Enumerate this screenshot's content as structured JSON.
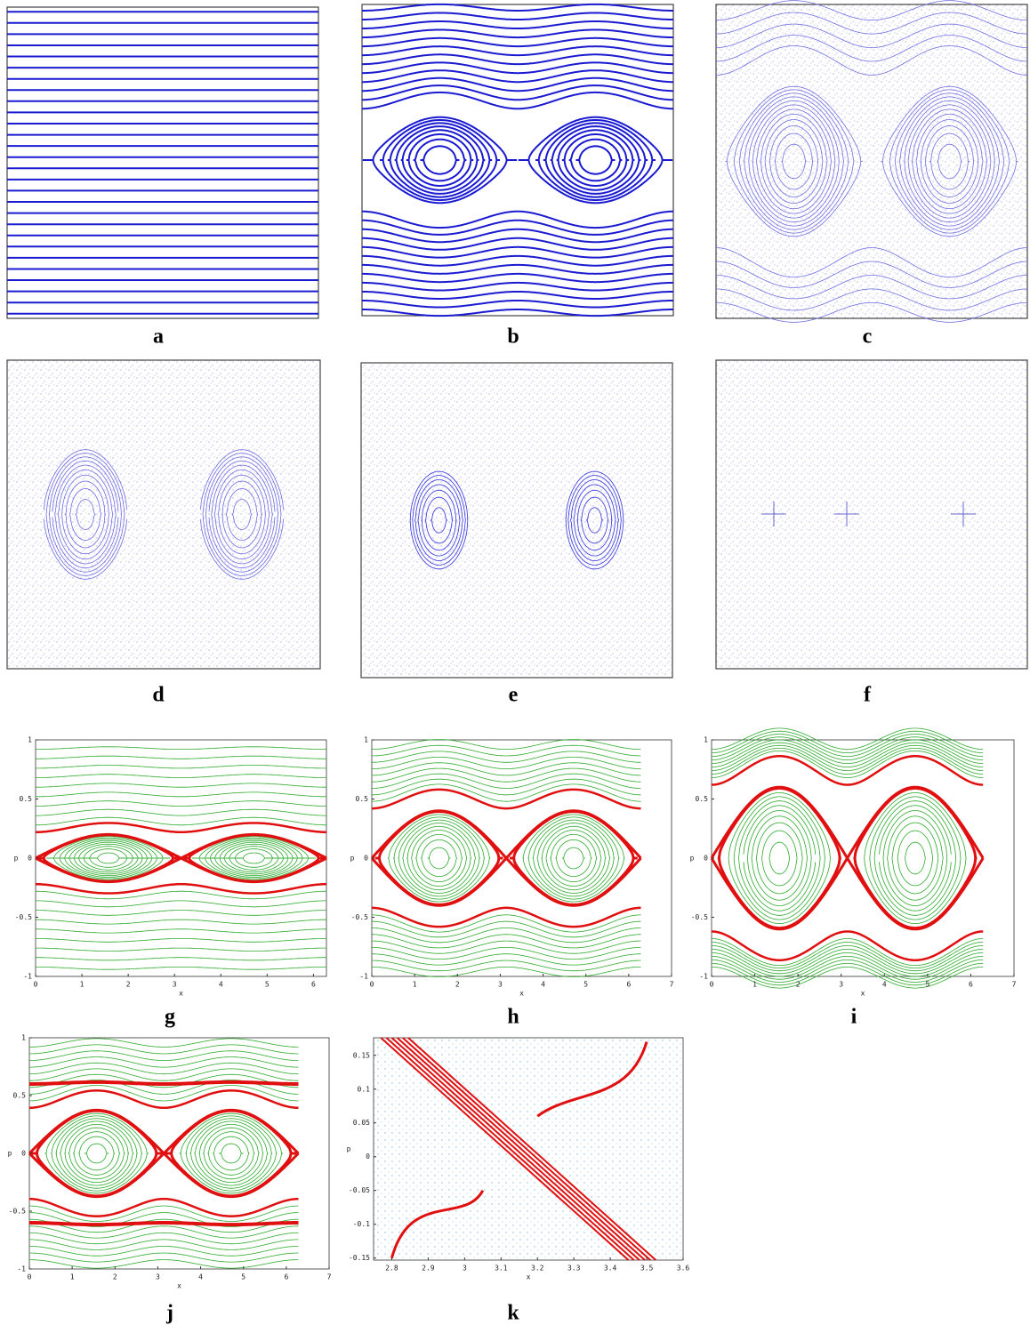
{
  "panels": [
    {
      "label": "a"
    },
    {
      "label": "b"
    },
    {
      "label": "c"
    },
    {
      "label": "d"
    },
    {
      "label": "e"
    },
    {
      "label": "f"
    },
    {
      "label": "g",
      "xlabel": "x",
      "ylabel": "p",
      "xlim": [
        0,
        6.28
      ],
      "ylim": [
        -1,
        1
      ],
      "xticks": [
        0,
        1,
        2,
        3,
        4,
        5,
        6
      ],
      "yticks": [
        -1,
        -0.5,
        0,
        0.5,
        1
      ]
    },
    {
      "label": "h",
      "xlabel": "x",
      "ylabel": "p",
      "xlim": [
        0,
        7
      ],
      "ylim": [
        -1,
        1
      ],
      "xticks": [
        0,
        1,
        2,
        3,
        4,
        5,
        6,
        7
      ],
      "yticks": [
        -1,
        -0.5,
        0,
        0.5,
        1
      ]
    },
    {
      "label": "i",
      "xlabel": "x",
      "ylabel": "p",
      "xlim": [
        0,
        7
      ],
      "ylim": [
        -1,
        1
      ],
      "xticks": [
        0,
        1,
        2,
        3,
        4,
        5,
        6,
        7
      ],
      "yticks": [
        -1,
        -0.5,
        0,
        0.5,
        1
      ]
    },
    {
      "label": "j",
      "xlabel": "x",
      "ylabel": "p",
      "xlim": [
        0,
        7
      ],
      "ylim": [
        -1,
        1
      ],
      "xticks": [
        0,
        1,
        2,
        3,
        4,
        5,
        6,
        7
      ],
      "yticks": [
        -1,
        -0.5,
        0,
        0.5,
        1
      ]
    },
    {
      "label": "k",
      "xlabel": "x",
      "ylabel": "p",
      "xlim": [
        2.75,
        3.6
      ],
      "ylim": [
        -0.153,
        0.176
      ],
      "xticks": [
        2.8,
        2.9,
        3,
        3.1,
        3.2,
        3.3,
        3.4,
        3.5,
        3.6
      ],
      "yticks": [
        -0.15,
        -0.1,
        -0.05,
        0,
        0.05,
        0.1,
        0.15
      ]
    }
  ]
}
